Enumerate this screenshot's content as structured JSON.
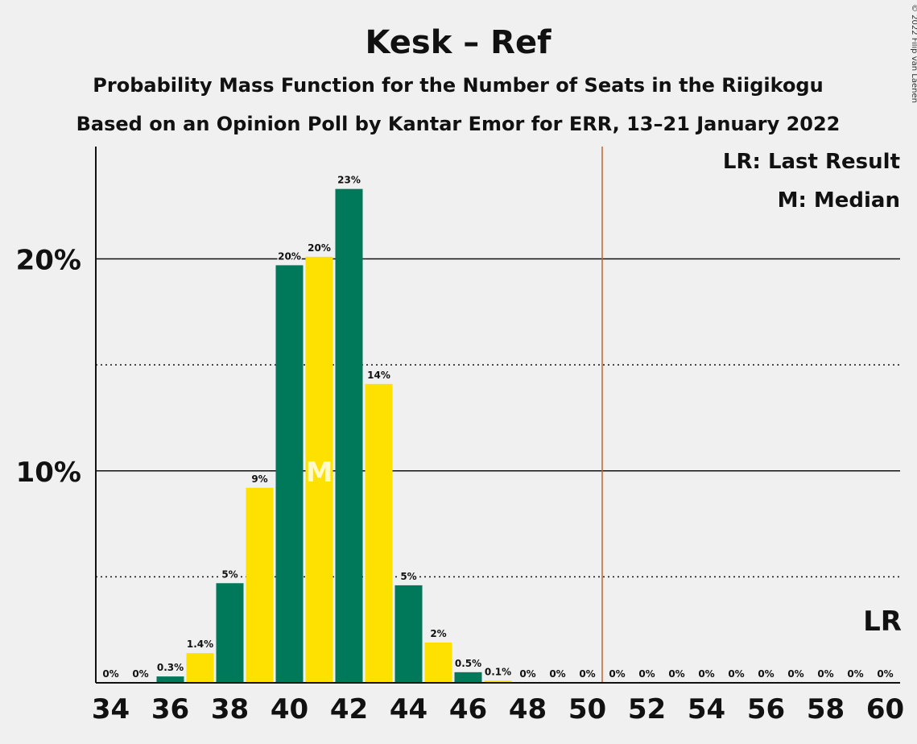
{
  "chart_data": {
    "type": "bar",
    "title": "Kesk – Ref",
    "subtitle1": "Probability Mass Function for the Number of Seats in the Riigikogu",
    "subtitle2": "Based on an Opinion Poll by Kantar Emor for ERR, 13–21 January 2022",
    "copyright": "© 2022 Filip van Laenen",
    "x": [
      34,
      35,
      36,
      37,
      38,
      39,
      40,
      41,
      42,
      43,
      44,
      45,
      46,
      47,
      48,
      49,
      50,
      51,
      52,
      53,
      54,
      55,
      56,
      57,
      58,
      59,
      60
    ],
    "values": [
      0,
      0,
      0.3,
      1.4,
      4.7,
      9.2,
      19.7,
      20.1,
      23.3,
      14.1,
      4.6,
      1.9,
      0.5,
      0.1,
      0,
      0,
      0,
      0,
      0,
      0,
      0,
      0,
      0,
      0,
      0,
      0,
      0
    ],
    "labels": [
      "0%",
      "0%",
      "0.3%",
      "1.4%",
      "5%",
      "9%",
      "20%",
      "20%",
      "23%",
      "14%",
      "5%",
      "2%",
      "0.5%",
      "0.1%",
      "0%",
      "0%",
      "0%",
      "0%",
      "0%",
      "0%",
      "0%",
      "0%",
      "0%",
      "0%",
      "0%",
      "0%",
      "0%"
    ],
    "x_ticks": [
      34,
      36,
      38,
      40,
      42,
      44,
      46,
      48,
      50,
      52,
      54,
      56,
      58,
      60
    ],
    "y_major_ticks": [
      10,
      20
    ],
    "y_major_labels": [
      "10%",
      "20%"
    ],
    "y_minor_gridlines": [
      5,
      15
    ],
    "ylim": [
      0,
      25.3
    ],
    "xlim": [
      33.5,
      60.5
    ],
    "median": 41,
    "median_label": "M",
    "majority_line": 50.5,
    "last_result": 60,
    "last_result_label": "LR",
    "legend": [
      "LR: Last Result",
      "M: Median"
    ],
    "legend_position": "top-right",
    "colors": {
      "green": "#00785a",
      "yellow": "#ffe100",
      "majority": "#c8602a",
      "axis": "#111111",
      "background": "#f0f0f0"
    }
  }
}
